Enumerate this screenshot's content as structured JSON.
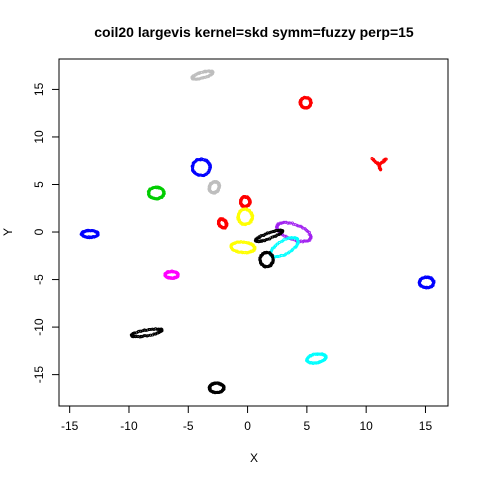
{
  "chart_data": {
    "type": "scatter",
    "title": "coil20 largevis kernel=skd symm=fuzzy perp=15",
    "xlabel": "X",
    "ylabel": "Y",
    "xlim": [
      -15.9,
      16.9
    ],
    "ylim": [
      -18.3,
      18.2
    ],
    "xticks": [
      -15,
      -10,
      -5,
      0,
      5,
      10,
      15
    ],
    "yticks": [
      -15,
      -10,
      -5,
      0,
      5,
      10,
      15
    ],
    "xtick_labels": [
      "-15",
      "-10",
      "-5",
      "0",
      "5",
      "10",
      "15"
    ],
    "ytick_labels": [
      "-15",
      "-10",
      "-5",
      "0",
      "5",
      "10",
      "15"
    ],
    "grid": false,
    "legend": false,
    "clusters": [
      {
        "color": "#BEBEBE",
        "shape": "ellipse",
        "cx": -3.8,
        "cy": 16.5,
        "rx": 0.9,
        "ry": 0.3,
        "rot": -15
      },
      {
        "color": "#FF0000",
        "shape": "ellipse",
        "cx": 4.9,
        "cy": 13.6,
        "rx": 0.45,
        "ry": 0.55,
        "rot": 0
      },
      {
        "color": "#0000FF",
        "shape": "ellipse",
        "cx": -3.9,
        "cy": 6.8,
        "rx": 0.75,
        "ry": 0.85,
        "rot": 0
      },
      {
        "color": "#FF0000",
        "shape": "y",
        "cx": 11.1,
        "cy": 7.1,
        "rx": 0.6,
        "ry": 0.6,
        "rot": 0
      },
      {
        "color": "#BEBEBE",
        "shape": "ellipse",
        "cx": -2.8,
        "cy": 4.7,
        "rx": 0.4,
        "ry": 0.6,
        "rot": 30
      },
      {
        "color": "#00CD00",
        "shape": "ellipse",
        "cx": -7.7,
        "cy": 4.1,
        "rx": 0.65,
        "ry": 0.6,
        "rot": 0
      },
      {
        "color": "#FF0000",
        "shape": "ellipse",
        "cx": -0.2,
        "cy": 3.2,
        "rx": 0.4,
        "ry": 0.5,
        "rot": 0
      },
      {
        "color": "#FF0000",
        "shape": "ellipse",
        "cx": -2.1,
        "cy": 0.9,
        "rx": 0.3,
        "ry": 0.5,
        "rot": -30
      },
      {
        "color": "#FFFF00",
        "shape": "ellipse",
        "cx": -0.2,
        "cy": 1.6,
        "rx": 0.6,
        "ry": 0.8,
        "rot": 0
      },
      {
        "color": "#0000FF",
        "shape": "ellipse",
        "cx": -13.3,
        "cy": -0.2,
        "rx": 0.7,
        "ry": 0.35,
        "rot": 0
      },
      {
        "color": "#A020F0",
        "shape": "ellipse",
        "cx": 3.9,
        "cy": 0.0,
        "rx": 1.5,
        "ry": 0.8,
        "rot": 20
      },
      {
        "color": "#00FFFF",
        "shape": "ellipse",
        "cx": 3.1,
        "cy": -1.6,
        "rx": 1.3,
        "ry": 0.7,
        "rot": -30
      },
      {
        "color": "#FFFF00",
        "shape": "ellipse",
        "cx": -0.4,
        "cy": -1.6,
        "rx": 1.0,
        "ry": 0.55,
        "rot": 5
      },
      {
        "color": "#000000",
        "shape": "ellipse",
        "cx": 1.6,
        "cy": -2.9,
        "rx": 0.55,
        "ry": 0.75,
        "rot": 0
      },
      {
        "color": "#000000",
        "shape": "ellipse",
        "cx": 1.8,
        "cy": -0.4,
        "rx": 1.2,
        "ry": 0.3,
        "rot": -20
      },
      {
        "color": "#FF00FF",
        "shape": "ellipse",
        "cx": -6.4,
        "cy": -4.5,
        "rx": 0.55,
        "ry": 0.35,
        "rot": 0
      },
      {
        "color": "#0000FF",
        "shape": "ellipse",
        "cx": 15.1,
        "cy": -5.3,
        "rx": 0.6,
        "ry": 0.55,
        "rot": 0
      },
      {
        "color": "#000000",
        "shape": "ellipse",
        "cx": -8.5,
        "cy": -10.6,
        "rx": 1.3,
        "ry": 0.3,
        "rot": -10
      },
      {
        "color": "#00FFFF",
        "shape": "ellipse",
        "cx": 5.8,
        "cy": -13.3,
        "rx": 0.8,
        "ry": 0.45,
        "rot": -10
      },
      {
        "color": "#000000",
        "shape": "ellipse",
        "cx": -2.6,
        "cy": -16.4,
        "rx": 0.6,
        "ry": 0.5,
        "rot": 0
      }
    ]
  }
}
